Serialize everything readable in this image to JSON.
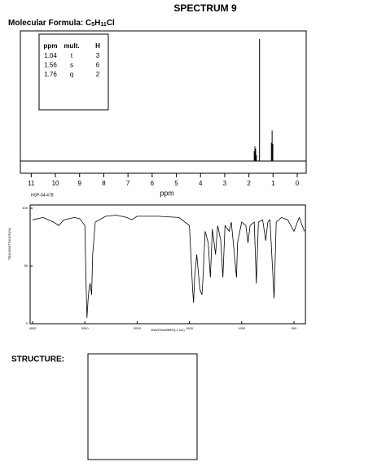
{
  "header": {
    "title": "SPECTRUM 9",
    "formula_label": "Molecular Formula:",
    "formula": [
      "C",
      "5",
      "H",
      "11",
      "Cl"
    ]
  },
  "table": {
    "headers": [
      "ppm",
      "mult.",
      "H"
    ],
    "rows": [
      [
        "1.04",
        "t",
        "3"
      ],
      [
        "1.56",
        "s",
        "6"
      ],
      [
        "1.76",
        "q",
        "2"
      ]
    ]
  },
  "nmr_spectrum": {
    "type": "stick",
    "xlabel": "ppm",
    "xlim": [
      11.45,
      -0.37
    ],
    "ylim": [
      0,
      100
    ],
    "xticks": [
      11,
      10,
      9,
      8,
      7,
      6,
      5,
      4,
      3,
      2,
      1,
      0
    ],
    "x": [
      1.78,
      1.75,
      1.72,
      1.69,
      1.56,
      1.07,
      1.04,
      1.01
    ],
    "values": [
      8,
      12,
      10,
      5,
      100,
      15,
      25,
      14
    ]
  },
  "ir_spectrum": {
    "type": "line",
    "code": "HSP-04-478",
    "ylabel": "TRANSMITTANCE(%)",
    "xlabel": "WAVENUMBER(-1 cm)",
    "xlim": [
      4000,
      390
    ],
    "ylim": [
      0,
      100
    ],
    "xticks": [
      4000,
      3000,
      2000,
      1500,
      1000,
      500
    ],
    "yticks": [
      100,
      50,
      0
    ],
    "x": [
      4000,
      3800,
      3600,
      3500,
      3400,
      3200,
      3100,
      3000,
      2980,
      2960,
      2940,
      2920,
      2900,
      2870,
      2850,
      2800,
      2600,
      2400,
      2200,
      2100,
      2000,
      1800,
      1600,
      1500,
      1470,
      1460,
      1450,
      1430,
      1400,
      1380,
      1370,
      1350,
      1320,
      1300,
      1280,
      1250,
      1230,
      1200,
      1180,
      1160,
      1120,
      1100,
      1080,
      1050,
      1040,
      1000,
      960,
      940,
      920,
      880,
      860,
      840,
      800,
      770,
      750,
      730,
      690,
      670,
      620,
      560,
      500,
      450,
      400
    ],
    "values": [
      90,
      92,
      88,
      85,
      90,
      92,
      91,
      85,
      40,
      5,
      20,
      30,
      35,
      25,
      60,
      88,
      93,
      94,
      92,
      90,
      93,
      93,
      92,
      85,
      30,
      18,
      40,
      60,
      30,
      25,
      40,
      80,
      70,
      40,
      82,
      60,
      85,
      72,
      40,
      85,
      80,
      88,
      70,
      40,
      70,
      88,
      85,
      70,
      85,
      88,
      35,
      88,
      90,
      72,
      88,
      90,
      22,
      88,
      92,
      90,
      80,
      92,
      80
    ]
  }
}
